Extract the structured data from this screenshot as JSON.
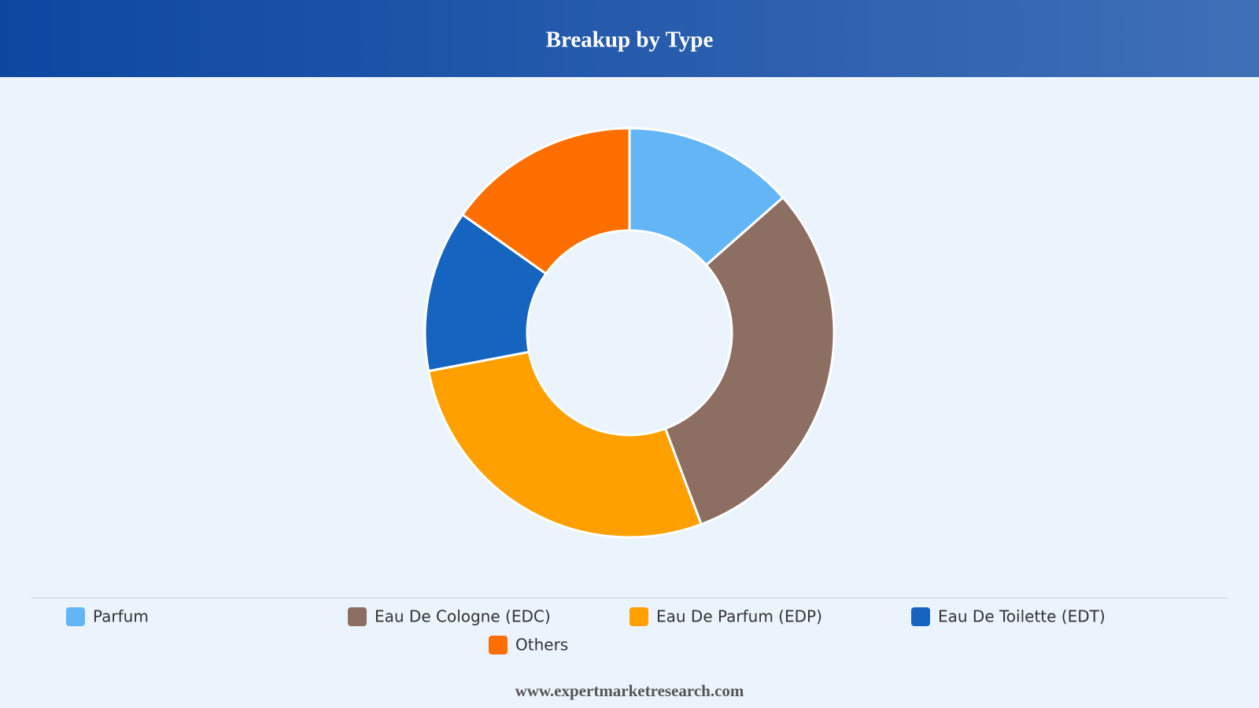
{
  "chart_data": {
    "type": "pie",
    "title": "Breakup by Type",
    "categories": [
      "Parfum",
      "Eau De Cologne (EDC)",
      "Eau De Parfum (EDP)",
      "Eau De Toilette (EDT)",
      "Others"
    ],
    "values": [
      13.5,
      30.8,
      27.7,
      12.8,
      15.2
    ],
    "colors": [
      "#64b5f6",
      "#8d6e63",
      "#ffa000",
      "#1565c0",
      "#ff6f00"
    ],
    "legend": "bottom"
  },
  "footer": "www.expertmarketresearch.com"
}
